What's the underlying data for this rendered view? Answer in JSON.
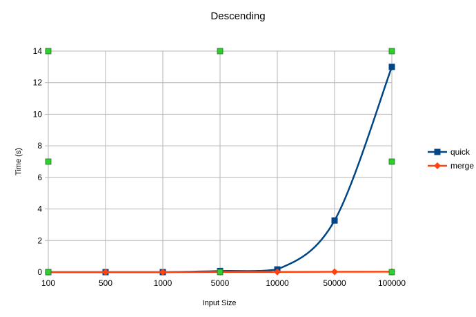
{
  "chart_data": {
    "type": "line",
    "title": "Descending",
    "xlabel": "Input Size",
    "ylabel": "Time (s)",
    "categories": [
      "100",
      "500",
      "1000",
      "5000",
      "10000",
      "50000",
      "100000"
    ],
    "ylim": [
      0,
      14
    ],
    "yticks": [
      "0",
      "2",
      "4",
      "6",
      "8",
      "10",
      "12",
      "14"
    ],
    "grid": true,
    "legend_position": "right",
    "series": [
      {
        "name": "quick",
        "color": "#004586",
        "marker": "square",
        "values": [
          0.0,
          0.0,
          0.0,
          0.07,
          0.17,
          3.27,
          13.0
        ]
      },
      {
        "name": "merge",
        "color": "#ff420e",
        "marker": "diamond",
        "values": [
          0.0,
          0.0,
          0.0,
          0.01,
          0.01,
          0.02,
          0.03
        ]
      }
    ],
    "annotation_points": {
      "color": "#33cc33",
      "marker": "square",
      "points": [
        {
          "x": "100",
          "y": 14
        },
        {
          "x": "100",
          "y": 7
        },
        {
          "x": "100",
          "y": 0
        },
        {
          "x": "5000",
          "y": 14
        },
        {
          "x": "5000",
          "y": 0
        },
        {
          "x": "100000",
          "y": 14
        },
        {
          "x": "100000",
          "y": 7
        },
        {
          "x": "100000",
          "y": 0
        }
      ]
    }
  }
}
